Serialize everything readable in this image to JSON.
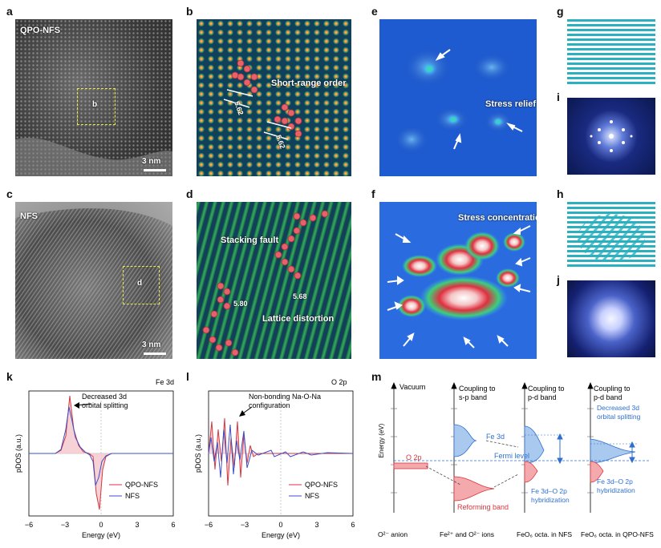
{
  "panel_labels": {
    "a": "a",
    "b": "b",
    "c": "c",
    "d": "d",
    "e": "e",
    "f": "f",
    "g": "g",
    "h": "h",
    "i": "i",
    "j": "j",
    "k": "k",
    "l": "l",
    "m": "m"
  },
  "a": {
    "sample": "QPO-NFS",
    "box": "b",
    "scale": "3 nm"
  },
  "c": {
    "sample": "NFS",
    "box": "d",
    "scale": "3 nm"
  },
  "b": {
    "annotation": "Short-range order",
    "d1": "5.62",
    "d2": "5.62"
  },
  "d": {
    "annotation1": "Stacking fault",
    "annotation2": "Lattice distortion",
    "d1": "5.80",
    "d2": "5.68"
  },
  "e": {
    "annotation": "Stress relief"
  },
  "f": {
    "annotation": "Stress concentration"
  },
  "k": {
    "orbital": "Fe 3d",
    "annotation_line1": "Decreased 3d",
    "annotation_line2": "orbital splitting",
    "legend": [
      "QPO-NFS",
      "NFS"
    ],
    "xlabel": "Energy (eV)",
    "ylabel": "pDOS (a.u.)",
    "xticks": [
      "−6",
      "−3",
      "0",
      "3",
      "6"
    ]
  },
  "l": {
    "orbital": "O 2p",
    "annotation_line1": "Non-bonding Na-O-Na",
    "annotation_line2": "configuration",
    "legend": [
      "QPO-NFS",
      "NFS"
    ],
    "xlabel": "Energy (eV)",
    "ylabel": "pDOS (a.u.)",
    "xticks": [
      "−6",
      "−3",
      "0",
      "3",
      "6"
    ]
  },
  "m": {
    "vacuum": "Vacuum",
    "energy_axis": "Energy (eV)",
    "o2p": "O 2p",
    "col2_head_1": "Coupling to",
    "col2_head_2": "s-p band",
    "col3_head_1": "Coupling to",
    "col3_head_2": "p-d band",
    "col4_head_1": "Coupling to",
    "col4_head_2": "p-d band",
    "fe3d": "Fe 3d",
    "fermi": "Fermi level",
    "reforming": "Reforming band",
    "hyb1_1": "Fe 3d–O 2p",
    "hyb1_2": "hybridization",
    "hyb2_1": "Fe 3d–O 2p",
    "hyb2_2": "hybridization",
    "decreased_1": "Decreased 3d",
    "decreased_2": "orbital splitting",
    "bottom_1": "O²⁻ anion",
    "bottom_2": "Fe²⁺ and O²⁻ ions",
    "bottom_3": "FeO₆ octa. in NFS",
    "bottom_4": "FeO₆ octa. in QPO-NFS"
  },
  "colors": {
    "qpo": "#d9363e",
    "nfs": "#3b4fc4",
    "blue_text": "#2f6fd0",
    "red_fill": "#f4a9ad",
    "blue_fill": "#a9c9ef"
  }
}
